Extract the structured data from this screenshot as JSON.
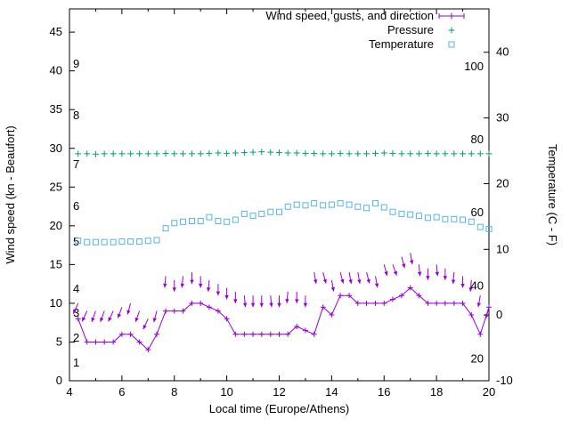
{
  "chart_data": {
    "type": "line",
    "title": "",
    "xlabel": "Local time (Europe/Athens)",
    "ylabel_left": "Wind speed (kn - Beaufort)",
    "ylabel_right": "Temperature (C - F)",
    "x_range": [
      4,
      20
    ],
    "x_major_ticks": [
      4,
      6,
      8,
      10,
      12,
      14,
      16,
      18,
      20
    ],
    "x_minor_ticks": [
      5,
      7,
      9,
      11,
      13,
      15,
      17,
      19
    ],
    "y_left_range": [
      0,
      48
    ],
    "y_left_ticks": [
      0,
      5,
      10,
      15,
      20,
      25,
      30,
      35,
      40,
      45
    ],
    "y_right_range": [
      -10,
      46.6
    ],
    "y_right_ticks": [
      -10,
      0,
      10,
      20,
      30,
      40
    ],
    "beaufort_labels": [
      {
        "label": "1",
        "kn": 2.3
      },
      {
        "label": "2",
        "kn": 5.5
      },
      {
        "label": "3",
        "kn": 8.7
      },
      {
        "label": "4",
        "kn": 11.8
      },
      {
        "label": "5",
        "kn": 17.9
      },
      {
        "label": "6",
        "kn": 22.5
      },
      {
        "label": "7",
        "kn": 27.9
      },
      {
        "label": "8",
        "kn": 34.2
      },
      {
        "label": "9",
        "kn": 40.9
      }
    ],
    "fahrenheit_labels": [
      {
        "label": "20",
        "c": -6.7
      },
      {
        "label": "40",
        "c": 4.4
      },
      {
        "label": "60",
        "c": 15.6
      },
      {
        "label": "80",
        "c": 26.7
      },
      {
        "label": "100",
        "c": 37.8
      }
    ],
    "legend": [
      {
        "label": "Wind speed, gusts, and direction",
        "marker": "errorbar-plus",
        "color": "#9400d3"
      },
      {
        "label": "Pressure",
        "marker": "plus",
        "color": "#009e73"
      },
      {
        "label": "Temperature",
        "marker": "open-square",
        "color": "#56b4e9"
      }
    ],
    "colors": {
      "wind": "#9400d3",
      "pressure": "#009e73",
      "temperature": "#56b4e9",
      "axis": "#000000"
    },
    "x": [
      4.33,
      4.67,
      5.0,
      5.33,
      5.67,
      6.0,
      6.33,
      6.67,
      7.0,
      7.33,
      7.67,
      8.0,
      8.33,
      8.67,
      9.0,
      9.33,
      9.67,
      10.0,
      10.33,
      10.67,
      11.0,
      11.33,
      11.67,
      12.0,
      12.33,
      12.67,
      13.0,
      13.33,
      13.67,
      14.0,
      14.33,
      14.67,
      15.0,
      15.33,
      15.67,
      16.0,
      16.33,
      16.67,
      17.0,
      17.33,
      17.67,
      18.0,
      18.33,
      18.67,
      19.0,
      19.33,
      19.67,
      20.0
    ],
    "series": {
      "wind_speed_kn": [
        8,
        5,
        5,
        5,
        5,
        6,
        6,
        5,
        4,
        6,
        9,
        9,
        9,
        10,
        10,
        9.5,
        9,
        8,
        6,
        6,
        6,
        6,
        6,
        6,
        6,
        7,
        6.5,
        6,
        9.5,
        8.5,
        11,
        11,
        10,
        10,
        10,
        10,
        10.5,
        11,
        12,
        11,
        10,
        10,
        10,
        10,
        10,
        8.5,
        6,
        9.5
      ],
      "wind_gust_kn": [
        10,
        9,
        9,
        9,
        9,
        9.5,
        10,
        9,
        8,
        9,
        13.5,
        13,
        13.5,
        14,
        13.5,
        13,
        12.5,
        12,
        11.5,
        11,
        11,
        11,
        11,
        11,
        11.5,
        11.5,
        11,
        14,
        14,
        13,
        14,
        14,
        14,
        14,
        13.5,
        15,
        15,
        16,
        16.5,
        15,
        14.5,
        15,
        14.5,
        14,
        13.5,
        13,
        11,
        9.5
      ],
      "wind_dir_deg": [
        205,
        205,
        200,
        200,
        205,
        200,
        195,
        200,
        205,
        195,
        185,
        180,
        185,
        180,
        180,
        185,
        180,
        180,
        180,
        175,
        180,
        180,
        175,
        180,
        185,
        180,
        180,
        170,
        165,
        170,
        165,
        170,
        170,
        165,
        170,
        165,
        160,
        165,
        170,
        175,
        180,
        175,
        180,
        185,
        180,
        185,
        190,
        195
      ],
      "pressure_plot_units_kn": [
        29.3,
        29.3,
        29.25,
        29.3,
        29.3,
        29.3,
        29.3,
        29.3,
        29.3,
        29.3,
        29.35,
        29.3,
        29.3,
        29.3,
        29.3,
        29.35,
        29.4,
        29.35,
        29.4,
        29.45,
        29.5,
        29.55,
        29.5,
        29.45,
        29.4,
        29.4,
        29.35,
        29.35,
        29.3,
        29.3,
        29.35,
        29.3,
        29.3,
        29.3,
        29.35,
        29.4,
        29.35,
        29.3,
        29.3,
        29.3,
        29.35,
        29.3,
        29.3,
        29.3,
        29.3,
        29.3,
        29.3,
        29.3
      ],
      "temperature_c": [
        11.3,
        11.1,
        11.1,
        11.1,
        11.1,
        11.2,
        11.2,
        11.2,
        11.3,
        11.4,
        13.2,
        14.0,
        14.2,
        14.3,
        14.3,
        14.9,
        14.3,
        14.2,
        14.5,
        15.4,
        15.1,
        15.4,
        15.7,
        15.7,
        16.5,
        16.8,
        16.7,
        17.0,
        16.7,
        16.8,
        17.0,
        16.8,
        16.5,
        16.3,
        17.0,
        16.4,
        15.7,
        15.4,
        15.3,
        15.1,
        14.8,
        14.9,
        14.6,
        14.6,
        14.5,
        14.2,
        13.4,
        13.1
      ]
    },
    "notes": {
      "pressure_axis": "no visible pressure scale; marks plotted near 29.3 on the left-axis pixel scale",
      "gusts": "arrows start at gust speed and point in the downwind direction"
    }
  }
}
